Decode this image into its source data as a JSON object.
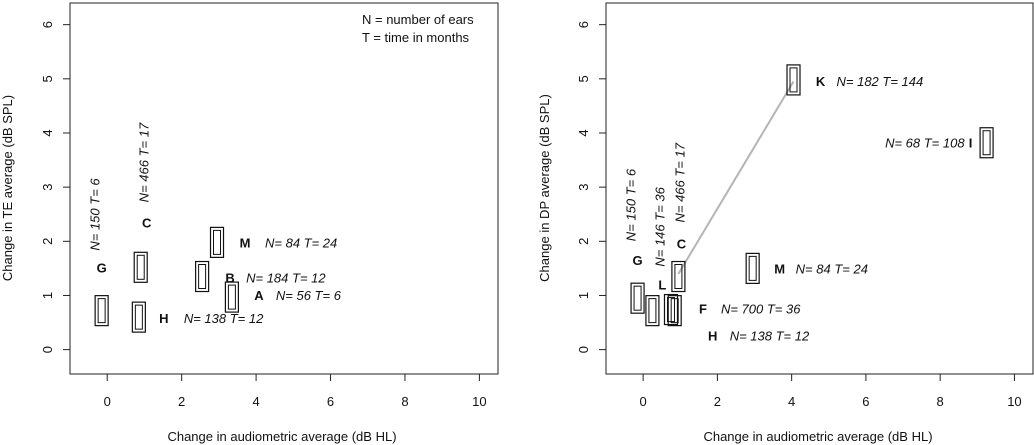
{
  "chart_data": [
    {
      "type": "scatter",
      "xlabel": "Change in audiometric average (dB HL)",
      "ylabel": "Change in TE average (dB SPL)",
      "xlim": [
        -1,
        10.5
      ],
      "ylim": [
        -0.45,
        6.4
      ],
      "xticks": [
        0,
        2,
        4,
        6,
        8,
        10
      ],
      "yticks": [
        0,
        1,
        2,
        3,
        4,
        5,
        6
      ],
      "legend_lines": [
        "N = number of ears",
        "T = time in months"
      ],
      "legend_position": "top-right",
      "points": [
        {
          "label": "G",
          "x": -0.15,
          "y": 0.72,
          "annotation": "N= 150 T= 6",
          "note_vertical": true
        },
        {
          "label": "C",
          "x": 0.9,
          "y": 1.52,
          "annotation": "N= 466 T= 17",
          "note_vertical": true
        },
        {
          "label": "H",
          "x": 0.85,
          "y": 0.6,
          "annotation": "N= 138 T= 12",
          "note_vertical": false
        },
        {
          "label": "M",
          "x": 2.95,
          "y": 1.98,
          "annotation": "N= 84 T= 24",
          "note_vertical": false
        },
        {
          "label": "B",
          "x": 2.55,
          "y": 1.35,
          "annotation": "N= 184 T= 12",
          "note_vertical": false
        },
        {
          "label": "A",
          "x": 3.35,
          "y": 0.97,
          "annotation": "N= 56 T= 6",
          "note_vertical": false
        }
      ],
      "lines": []
    },
    {
      "type": "scatter",
      "xlabel": "Change in audiometric average (dB HL)",
      "ylabel": "Change in DP average (dB SPL)",
      "xlim": [
        -1,
        10.5
      ],
      "ylim": [
        -0.45,
        6.4
      ],
      "xticks": [
        0,
        2,
        4,
        6,
        8,
        10
      ],
      "yticks": [
        0,
        1,
        2,
        3,
        4,
        5,
        6
      ],
      "legend_lines": [],
      "points": [
        {
          "label": "G",
          "x": -0.15,
          "y": 0.95,
          "annotation": "N= 150 T= 6",
          "note_vertical": true
        },
        {
          "label": "L",
          "x": 0.25,
          "y": 0.72,
          "annotation": "N= 146 T= 36",
          "note_vertical": true
        },
        {
          "label": "C",
          "x": 0.95,
          "y": 1.35,
          "annotation": "N= 466 T= 17",
          "note_vertical": true
        },
        {
          "label": "F",
          "x": 0.75,
          "y": 0.74,
          "annotation": "N= 700 T= 36",
          "note_vertical": false
        },
        {
          "label": "H",
          "x": 0.85,
          "y": 0.72,
          "annotation": "N= 138 T= 12",
          "note_vertical": false
        },
        {
          "label": "M",
          "x": 2.95,
          "y": 1.5,
          "annotation": "N= 84 T= 24",
          "note_vertical": false
        },
        {
          "label": "K",
          "x": 4.05,
          "y": 4.98,
          "annotation": "N= 182 T= 144",
          "note_vertical": false
        },
        {
          "label": "I",
          "x": 9.25,
          "y": 3.82,
          "annotation": "N= 68 T= 108",
          "note_vertical": false
        }
      ],
      "lines": [
        {
          "from": [
            0.95,
            1.4
          ],
          "to": [
            4.05,
            4.95
          ]
        }
      ]
    }
  ]
}
